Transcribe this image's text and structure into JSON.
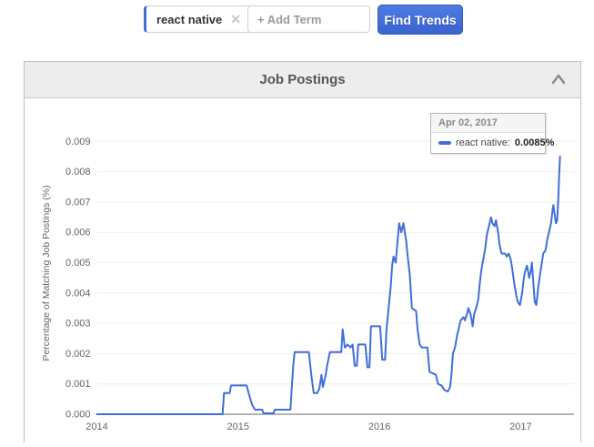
{
  "topbar": {
    "terms": [
      {
        "label": "react native",
        "remove_icon": "✕"
      }
    ],
    "add_term_placeholder": "+ Add Term",
    "find_trends_label": "Find Trends"
  },
  "panel": {
    "title": "Job Postings"
  },
  "colors": {
    "accent_blue": "#3f6fd8",
    "grid_line": "#efefef",
    "zero_axis": "#b3b3b3",
    "tick_text": "#666666"
  },
  "chart_data": {
    "type": "line",
    "title": "Job Postings",
    "xlabel": "",
    "ylabel": "Percentage of Matching Job Postings (%)",
    "legend_position": "tooltip-top-right",
    "grid": true,
    "x_range": [
      2014.0,
      2017.38
    ],
    "ylim": [
      0,
      0.009
    ],
    "x_ticks": [
      2014,
      2015,
      2016,
      2017
    ],
    "y_ticks": [
      "0.000",
      "0.001",
      "0.002",
      "0.003",
      "0.004",
      "0.005",
      "0.006",
      "0.007",
      "0.008",
      "0.009"
    ],
    "tooltip": {
      "date": "Apr 02, 2017",
      "series_label": "react native:",
      "value": "0.0085%"
    },
    "series": [
      {
        "name": "react native",
        "color": "#3f6fd8",
        "points": [
          [
            2014.0,
            0
          ],
          [
            2014.89,
            0
          ],
          [
            2014.9,
            0.0007
          ],
          [
            2014.94,
            0.0007
          ],
          [
            2014.95,
            0.00095
          ],
          [
            2015.06,
            0.00095
          ],
          [
            2015.08,
            0.0006
          ],
          [
            2015.1,
            0.0003
          ],
          [
            2015.12,
            0.00015
          ],
          [
            2015.17,
            0.00015
          ],
          [
            2015.18,
            3e-05
          ],
          [
            2015.25,
            3e-05
          ],
          [
            2015.26,
            0.00015
          ],
          [
            2015.37,
            0.00015
          ],
          [
            2015.38,
            0.0009
          ],
          [
            2015.39,
            0.0016
          ],
          [
            2015.4,
            0.00205
          ],
          [
            2015.5,
            0.00205
          ],
          [
            2015.52,
            0.0012
          ],
          [
            2015.535,
            0.0007
          ],
          [
            2015.56,
            0.0007
          ],
          [
            2015.575,
            0.00085
          ],
          [
            2015.59,
            0.0013
          ],
          [
            2015.6,
            0.0009
          ],
          [
            2015.62,
            0.0013
          ],
          [
            2015.63,
            0.0016
          ],
          [
            2015.65,
            0.00205
          ],
          [
            2015.73,
            0.00205
          ],
          [
            2015.74,
            0.0028
          ],
          [
            2015.755,
            0.0022
          ],
          [
            2015.775,
            0.0023
          ],
          [
            2015.795,
            0.0022
          ],
          [
            2015.81,
            0.0023
          ],
          [
            2015.825,
            0.0016
          ],
          [
            2015.84,
            0.0016
          ],
          [
            2015.85,
            0.0023
          ],
          [
            2015.9,
            0.0023
          ],
          [
            2015.915,
            0.00155
          ],
          [
            2015.93,
            0.00155
          ],
          [
            2015.94,
            0.0029
          ],
          [
            2016.005,
            0.0029
          ],
          [
            2016.02,
            0.0018
          ],
          [
            2016.04,
            0.0018
          ],
          [
            2016.05,
            0.0028
          ],
          [
            2016.08,
            0.0042
          ],
          [
            2016.09,
            0.0049
          ],
          [
            2016.1,
            0.0052
          ],
          [
            2016.115,
            0.005
          ],
          [
            2016.13,
            0.0058
          ],
          [
            2016.14,
            0.0063
          ],
          [
            2016.155,
            0.006
          ],
          [
            2016.17,
            0.0063
          ],
          [
            2016.19,
            0.0057
          ],
          [
            2016.2,
            0.0052
          ],
          [
            2016.215,
            0.0046
          ],
          [
            2016.23,
            0.0035
          ],
          [
            2016.26,
            0.0034
          ],
          [
            2016.27,
            0.0028
          ],
          [
            2016.285,
            0.0023
          ],
          [
            2016.3,
            0.0022
          ],
          [
            2016.34,
            0.0022
          ],
          [
            2016.355,
            0.0014
          ],
          [
            2016.4,
            0.0013
          ],
          [
            2016.415,
            0.001
          ],
          [
            2016.44,
            0.00095
          ],
          [
            2016.46,
            0.0008
          ],
          [
            2016.485,
            0.00075
          ],
          [
            2016.5,
            0.0009
          ],
          [
            2016.51,
            0.0013
          ],
          [
            2016.52,
            0.002
          ],
          [
            2016.535,
            0.0022
          ],
          [
            2016.55,
            0.0026
          ],
          [
            2016.56,
            0.0028
          ],
          [
            2016.575,
            0.0031
          ],
          [
            2016.595,
            0.0032
          ],
          [
            2016.605,
            0.0031
          ],
          [
            2016.62,
            0.0033
          ],
          [
            2016.63,
            0.0035
          ],
          [
            2016.645,
            0.0033
          ],
          [
            2016.66,
            0.0029
          ],
          [
            2016.67,
            0.0033
          ],
          [
            2016.685,
            0.0035
          ],
          [
            2016.7,
            0.0038
          ],
          [
            2016.71,
            0.0043
          ],
          [
            2016.72,
            0.0047
          ],
          [
            2016.735,
            0.0051
          ],
          [
            2016.75,
            0.0055
          ],
          [
            2016.76,
            0.0059
          ],
          [
            2016.775,
            0.0062
          ],
          [
            2016.79,
            0.0065
          ],
          [
            2016.8,
            0.0063
          ],
          [
            2016.815,
            0.0062
          ],
          [
            2016.825,
            0.0064
          ],
          [
            2016.84,
            0.006
          ],
          [
            2016.85,
            0.0056
          ],
          [
            2016.865,
            0.0053
          ],
          [
            2016.89,
            0.0053
          ],
          [
            2016.9,
            0.0052
          ],
          [
            2016.915,
            0.0053
          ],
          [
            2016.93,
            0.0051
          ],
          [
            2016.94,
            0.0048
          ],
          [
            2016.955,
            0.0043
          ],
          [
            2016.97,
            0.0039
          ],
          [
            2016.98,
            0.0037
          ],
          [
            2016.995,
            0.0036
          ],
          [
            2017.01,
            0.004
          ],
          [
            2017.02,
            0.0044
          ],
          [
            2017.03,
            0.0047
          ],
          [
            2017.045,
            0.0049
          ],
          [
            2017.06,
            0.0045
          ],
          [
            2017.07,
            0.0047
          ],
          [
            2017.08,
            0.005
          ],
          [
            2017.09,
            0.0043
          ],
          [
            2017.1,
            0.0037
          ],
          [
            2017.11,
            0.0036
          ],
          [
            2017.125,
            0.0042
          ],
          [
            2017.14,
            0.0047
          ],
          [
            2017.15,
            0.005
          ],
          [
            2017.16,
            0.0053
          ],
          [
            2017.175,
            0.0054
          ],
          [
            2017.19,
            0.0058
          ],
          [
            2017.2,
            0.006
          ],
          [
            2017.215,
            0.0063
          ],
          [
            2017.225,
            0.0067
          ],
          [
            2017.232,
            0.0069
          ],
          [
            2017.24,
            0.0066
          ],
          [
            2017.25,
            0.0063
          ],
          [
            2017.258,
            0.0064
          ],
          [
            2017.265,
            0.007
          ],
          [
            2017.272,
            0.0078
          ],
          [
            2017.278,
            0.0085
          ]
        ]
      }
    ]
  }
}
